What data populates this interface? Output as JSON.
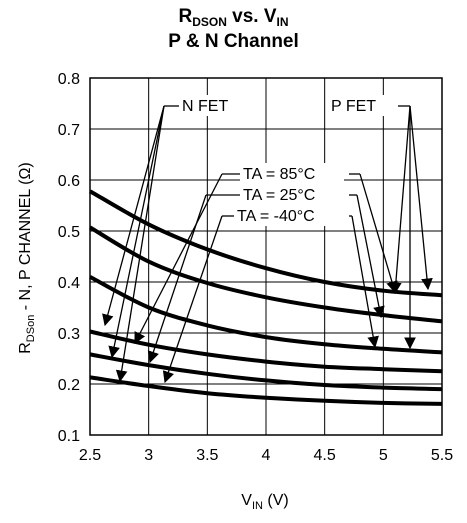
{
  "chart_data": {
    "type": "line",
    "title_parts": {
      "a": "R",
      "a_sub": "DSON",
      "b": " vs. V",
      "b_sub": "IN"
    },
    "subtitle": "P & N Channel",
    "xlabel_parts": {
      "a": "V",
      "a_sub": "IN",
      "b": " (V)"
    },
    "ylabel_parts": {
      "a": "R",
      "a_sub": "DSon",
      "b": " - N, P CHANNEL (Ω)"
    },
    "xlim": [
      2.5,
      5.5
    ],
    "ylim": [
      0.1,
      0.8
    ],
    "x_ticks": [
      "2.5",
      "3",
      "3.5",
      "4",
      "4.5",
      "5",
      "5.5"
    ],
    "y_ticks": [
      "0.1",
      "0.2",
      "0.3",
      "0.4",
      "0.5",
      "0.6",
      "0.7",
      "0.8"
    ],
    "grid": true,
    "x": [
      2.5,
      3.0,
      3.5,
      4.0,
      4.5,
      5.0,
      5.5
    ],
    "series": [
      {
        "group": "P FET",
        "temperature": "TA = 85°C",
        "values": [
          0.578,
          0.513,
          0.464,
          0.427,
          0.4,
          0.383,
          0.374
        ]
      },
      {
        "group": "P FET",
        "temperature": "TA = 25°C",
        "values": [
          0.507,
          0.44,
          0.398,
          0.37,
          0.35,
          0.335,
          0.323
        ]
      },
      {
        "group": "P FET",
        "temperature": "TA = -40°C",
        "values": [
          0.41,
          0.35,
          0.315,
          0.292,
          0.278,
          0.269,
          0.262
        ]
      },
      {
        "group": "N FET",
        "temperature": "TA = 85°C",
        "values": [
          0.303,
          0.277,
          0.258,
          0.244,
          0.234,
          0.229,
          0.225
        ]
      },
      {
        "group": "N FET",
        "temperature": "TA = 25°C",
        "values": [
          0.258,
          0.237,
          0.22,
          0.207,
          0.198,
          0.193,
          0.19
        ]
      },
      {
        "group": "N FET",
        "temperature": "TA = -40°C",
        "values": [
          0.213,
          0.196,
          0.182,
          0.173,
          0.167,
          0.163,
          0.161
        ]
      }
    ],
    "annotations": {
      "n_fet": "N FET",
      "p_fet": "P FET",
      "ta85": "TA = 85°C",
      "ta25": "TA = 25°C",
      "ta_m40": "TA = -40°C"
    }
  }
}
